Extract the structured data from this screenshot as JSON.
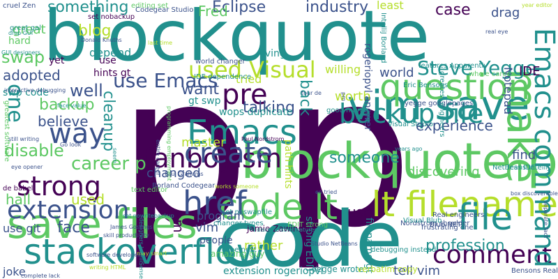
{
  "palette": {
    "purple": "#440154",
    "indigo": "#3b528b",
    "teal": "#21908d",
    "green": "#5dc863",
    "lime": "#b5de2b",
    "navy": "#2c3e7a"
  },
  "words": [
    {
      "text": "p",
      "color": "#440154"
    },
    {
      "text": "p",
      "color": "#440154"
    },
    {
      "text": "blockquote",
      "color": "#21908d"
    },
    {
      "text": "code",
      "color": "#21908d"
    },
    {
      "text": "blockquote p",
      "color": "#5dc863"
    },
    {
      "text": "vim save",
      "color": "#21908d"
    },
    {
      "text": "code lt",
      "color": "#5dc863"
    },
    {
      "text": "lt filename",
      "color": "#b5de2b"
    },
    {
      "text": "save files",
      "color": "#5dc863"
    },
    {
      "text": "stackoverflow",
      "color": "#21908d"
    },
    {
      "text": "href",
      "color": "#3b528b"
    },
    {
      "text": "fanboyism",
      "color": "#440154"
    },
    {
      "text": "question",
      "color": "#5dc863"
    },
    {
      "text": "backup file",
      "color": "#21908d"
    },
    {
      "text": "Emacs",
      "color": "#21908d"
    },
    {
      "text": "create",
      "color": "#3b528b"
    },
    {
      "text": "strong",
      "color": "#440154"
    },
    {
      "text": "extension",
      "color": "#3b528b"
    },
    {
      "text": "file",
      "color": "#21908d"
    },
    {
      "text": "comment",
      "color": "#440154"
    },
    {
      "text": "pre",
      "color": "#440154"
    },
    {
      "text": "make",
      "color": "#5dc863"
    },
    {
      "text": "way",
      "color": "#3b528b"
    },
    {
      "text": "use Emacs",
      "color": "#3b528b"
    },
    {
      "text": "Emacs command",
      "color": "#21908d"
    },
    {
      "text": "used Visual",
      "color": "#b5de2b"
    },
    {
      "text": "Steve Yegge",
      "color": "#21908d"
    },
    {
      "text": "something",
      "color": "#21908d"
    },
    {
      "text": "Eclipse",
      "color": "#3b528b"
    },
    {
      "text": "industry",
      "color": "#3b528b"
    },
    {
      "text": "Fred",
      "color": "#5dc863"
    },
    {
      "text": "least",
      "color": "#b5de2b"
    },
    {
      "text": "case",
      "color": "#440154"
    },
    {
      "text": "blog",
      "color": "#b5de2b"
    },
    {
      "text": "swap",
      "color": "#5dc863"
    },
    {
      "text": "adopted",
      "color": "#3b528b"
    },
    {
      "text": "well",
      "color": "#3b528b"
    },
    {
      "text": "backup",
      "color": "#5dc863"
    },
    {
      "text": "one",
      "color": "#21908d"
    },
    {
      "text": "believe",
      "color": "#3b528b"
    },
    {
      "text": "disable",
      "color": "#5dc863"
    },
    {
      "text": "career p",
      "color": "#5dc863"
    },
    {
      "text": "hall",
      "color": "#5dc863"
    },
    {
      "text": "used",
      "color": "#b5de2b"
    },
    {
      "text": "face",
      "color": "#3b528b"
    },
    {
      "text": "use git",
      "color": "#3b528b"
    },
    {
      "text": "joke",
      "color": "#3b528b"
    },
    {
      "text": "hard",
      "color": "#5dc863"
    },
    {
      "text": "great",
      "color": "#5dc863"
    },
    {
      "text": "depend",
      "color": "#21908d"
    },
    {
      "text": "yet",
      "color": "#440154"
    },
    {
      "text": "use",
      "color": "#440154"
    },
    {
      "text": "cleanup",
      "color": "#21908d"
    },
    {
      "text": "want",
      "color": "#3b528b"
    },
    {
      "text": "talking",
      "color": "#3b528b"
    },
    {
      "text": "tried",
      "color": "#b5de2b"
    },
    {
      "text": "living",
      "color": "#21908d"
    },
    {
      "text": "master",
      "color": "#b5de2b"
    },
    {
      "text": "changed",
      "color": "#3b528b"
    },
    {
      "text": "em",
      "color": "#440154"
    },
    {
      "text": "vim",
      "color": "#3b528b"
    },
    {
      "text": "program",
      "color": "#3b528b"
    },
    {
      "text": "people",
      "color": "#3b528b"
    },
    {
      "text": "rather",
      "color": "#b5de2b"
    },
    {
      "text": "someone",
      "color": "#21908d"
    },
    {
      "text": "use",
      "color": "#440154"
    },
    {
      "text": "find",
      "color": "#3b528b"
    },
    {
      "text": "discovering",
      "color": "#5dc863"
    },
    {
      "text": "experience",
      "color": "#3b528b"
    },
    {
      "text": "worth",
      "color": "#b5de2b"
    },
    {
      "text": "world",
      "color": "#3b528b"
    },
    {
      "text": "IDE",
      "color": "#440154"
    },
    {
      "text": "Notepad",
      "color": "#3b528b"
    },
    {
      "text": "drag",
      "color": "#3b528b"
    },
    {
      "text": "profession",
      "color": "#21908d"
    },
    {
      "text": "tell vim",
      "color": "#3b528b"
    },
    {
      "text": "back",
      "color": "#21908d"
    },
    {
      "text": "willing",
      "color": "#b5de2b"
    },
    {
      "text": "hints gt",
      "color": "#440154"
    },
    {
      "text": "gt swp",
      "color": "#21908d"
    },
    {
      "text": "swp code",
      "color": "#21908d"
    },
    {
      "text": "wops duplicate",
      "color": "#21908d"
    },
    {
      "text": "path hints",
      "color": "#b5de2b"
    },
    {
      "text": "strong EDIT",
      "color": "#21908d"
    },
    {
      "text": "filename gt",
      "color": "#21908d"
    },
    {
      "text": "extension rogeriopvl",
      "color": "#21908d"
    },
    {
      "text": "rogeriopvl answer",
      "color": "#3b528b"
    },
    {
      "text": "Yegge wrote",
      "color": "#21908d"
    },
    {
      "text": "verbatim copy",
      "color": "#b5de2b"
    },
    {
      "text": "Bensons Real",
      "color": "#3b528b"
    },
    {
      "text": "EDIT strong",
      "color": "#5dc863"
    },
    {
      "text": "Jamie Zawinskis",
      "color": "#440154"
    },
    {
      "text": "set noswapfile",
      "color": "#21908d"
    },
    {
      "text": "changer types",
      "color": "#21908d"
    },
    {
      "text": "cube next",
      "color": "#21908d"
    },
    {
      "text": "amazing guy",
      "color": "#5dc863"
    },
    {
      "text": "set nobackup",
      "color": "#440154"
    },
    {
      "text": "editing set",
      "color": "#5dc863"
    },
    {
      "text": "Codegear Studio",
      "color": "#3b528b"
    },
    {
      "text": "Donald Knuths",
      "color": "#3b528b"
    },
    {
      "text": "world changer",
      "color": "#3b528b"
    },
    {
      "text": "IDE dependence",
      "color": "#21908d"
    },
    {
      "text": "Paul Nordstrom",
      "color": "#440154"
    },
    {
      "text": "Paul Grahams",
      "color": "#3b528b"
    },
    {
      "text": "Borland Codegear",
      "color": "#3b528b"
    },
    {
      "text": "text editor",
      "color": "#5dc863"
    },
    {
      "text": "Nordstrom shoulder",
      "color": "#3b528b"
    },
    {
      "text": "frustrating one",
      "color": "#3b528b"
    },
    {
      "text": "debugging instead",
      "color": "#21908d"
    },
    {
      "text": "Real engineers",
      "color": "#3b528b"
    },
    {
      "text": "Visual Blub",
      "color": "#21908d"
    },
    {
      "text": "Blub NET",
      "color": "#3b528b"
    },
    {
      "text": "Visual Studio",
      "color": "#21908d"
    },
    {
      "text": "yegge googlepages",
      "color": "#3b528b"
    },
    {
      "text": "good month",
      "color": "#21908d"
    },
    {
      "text": "Eric Bensons",
      "color": "#21908d"
    },
    {
      "text": "whole career",
      "color": "#5dc863"
    },
    {
      "text": "NetBeans IntelliJ",
      "color": "#21908d"
    },
    {
      "text": "less IDE",
      "color": "#21908d"
    },
    {
      "text": "features Apparently",
      "color": "#21908d"
    },
    {
      "text": "greatest engineers",
      "color": "#21908d"
    },
    {
      "text": "IntelliJ Borland",
      "color": "#21908d"
    },
    {
      "text": "year editor",
      "color": "#b5de2b"
    },
    {
      "text": "real eye",
      "color": "#3b528b"
    },
    {
      "text": "cruel Zen",
      "color": "#3b528b"
    },
    {
      "text": "great gal",
      "color": "#21908d"
    },
    {
      "text": "drop GUI",
      "color": "#21908d"
    },
    {
      "text": "GUI designers",
      "color": "#21908d"
    },
    {
      "text": "interactive debugging",
      "color": "#3b528b"
    },
    {
      "text": "greatest software",
      "color": "#5dc863"
    },
    {
      "text": "still writing",
      "color": "#3b528b"
    },
    {
      "text": "Go look",
      "color": "#3b528b"
    },
    {
      "text": "eye opener",
      "color": "#3b528b"
    },
    {
      "text": "de babel",
      "color": "#440154"
    },
    {
      "text": "skill productivity",
      "color": "#3b528b"
    },
    {
      "text": "software developers",
      "color": "#3b528b"
    },
    {
      "text": "may smart",
      "color": "#b5de2b"
    },
    {
      "text": "writing HTML",
      "color": "#b5de2b"
    },
    {
      "text": "complete lack",
      "color": "#3b528b"
    },
    {
      "text": "set nowritebackup",
      "color": "#21908d"
    },
    {
      "text": "James Goslings",
      "color": "#3b528b"
    },
    {
      "text": "designers IntelliSense",
      "color": "#21908d"
    },
    {
      "text": "discoverable features",
      "color": "#21908d"
    },
    {
      "text": "separate fact",
      "color": "#3b528b"
    },
    {
      "text": "box discoverable",
      "color": "#3b528b"
    },
    {
      "text": "works someone",
      "color": "#b5de2b"
    },
    {
      "text": "entire career",
      "color": "#3b528b"
    },
    {
      "text": "programming employment",
      "color": "#5dc863"
    },
    {
      "text": "face value",
      "color": "#21908d"
    },
    {
      "text": "last time",
      "color": "#b5de2b"
    },
    {
      "text": "years ago",
      "color": "#21908d"
    },
    {
      "text": "tour de",
      "color": "#3b528b"
    },
    {
      "text": "pm",
      "color": "#3b528b"
    },
    {
      "text": "en tried",
      "color": "#3b528b"
    },
    {
      "text": "Studio NetBeans",
      "color": "#3b528b"
    },
    {
      "text": "seem",
      "color": "#21908d"
    }
  ]
}
